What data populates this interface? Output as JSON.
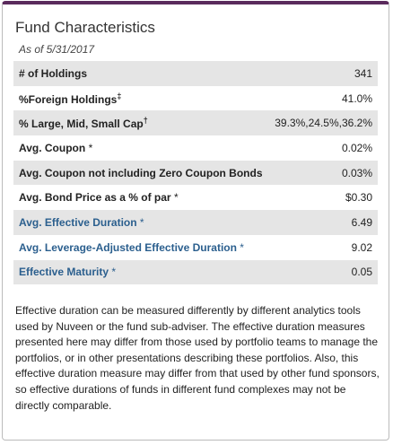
{
  "header": {
    "title": "Fund Characteristics",
    "subtitle": "As of 5/31/2017"
  },
  "table": {
    "rows": [
      {
        "label": "# of Holdings",
        "value": "341"
      },
      {
        "label": "%Foreign Holdings",
        "sup": "‡",
        "value": "41.0%"
      },
      {
        "label": "% Large, Mid, Small Cap",
        "sup": "†",
        "value": "39.3%,24.5%,36.2%"
      },
      {
        "label": "Avg. Coupon",
        "note": "*",
        "value": "0.02%"
      },
      {
        "label": "Avg. Coupon not including Zero Coupon Bonds",
        "value": "0.03%"
      },
      {
        "label": "Avg. Bond Price as a % of par",
        "note": "*",
        "value": "$0.30"
      },
      {
        "label": "Avg. Effective Duration",
        "note": "*",
        "value": "6.49",
        "link": true
      },
      {
        "label": "Avg. Leverage-Adjusted Effective Duration",
        "note": "*",
        "value": "9.02",
        "link": true
      },
      {
        "label": "Effective Maturity",
        "note": "*",
        "value": "0.05",
        "link": true
      }
    ]
  },
  "footnote": "Effective duration can be measured differently by different analytics tools used by Nuveen or the fund sub-adviser. The effective duration measures presented here may differ from those used by portfolio teams to manage the portfolios, or in other presentations describing these portfolios. Also, this effective duration measure may differ from that used by other fund sponsors, so effective durations of funds in different fund complexes may not be directly comparable."
}
